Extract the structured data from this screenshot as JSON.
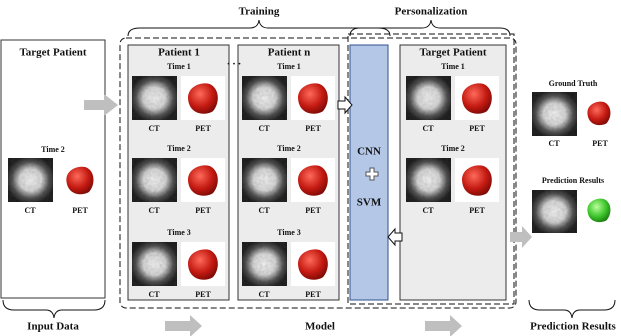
{
  "input": {
    "title": "Target Patient",
    "time": "Time 2",
    "ct": "CT",
    "pet": "PET",
    "caption": "Input Data"
  },
  "training": {
    "label": "Training",
    "ellipsis": ". . .",
    "patients": [
      {
        "title": "Patient 1",
        "times": [
          {
            "label": "Time 1",
            "ct": "CT",
            "pet": "PET"
          },
          {
            "label": "Time 2",
            "ct": "CT",
            "pet": "PET"
          },
          {
            "label": "Time 3",
            "ct": "CT",
            "pet": "PET"
          }
        ]
      },
      {
        "title": "Patient n",
        "times": [
          {
            "label": "Time 1",
            "ct": "CT",
            "pet": "PET"
          },
          {
            "label": "Time 2",
            "ct": "CT",
            "pet": "PET"
          },
          {
            "label": "Time 3",
            "ct": "CT",
            "pet": "PET"
          }
        ]
      }
    ]
  },
  "personalization": {
    "label": "Personalization",
    "cnn": "CNN",
    "svm": "SVM",
    "target": {
      "title": "Target Patient",
      "times": [
        {
          "label": "Time 1",
          "ct": "CT",
          "pet": "PET"
        },
        {
          "label": "Time 2",
          "ct": "CT",
          "pet": "PET"
        }
      ]
    }
  },
  "model_caption": "Model",
  "output": {
    "ground_truth": {
      "label": "Ground Truth",
      "ct": "CT",
      "pet": "PET"
    },
    "prediction": {
      "label": "Prediction Results"
    },
    "caption": "Prediction Results"
  }
}
